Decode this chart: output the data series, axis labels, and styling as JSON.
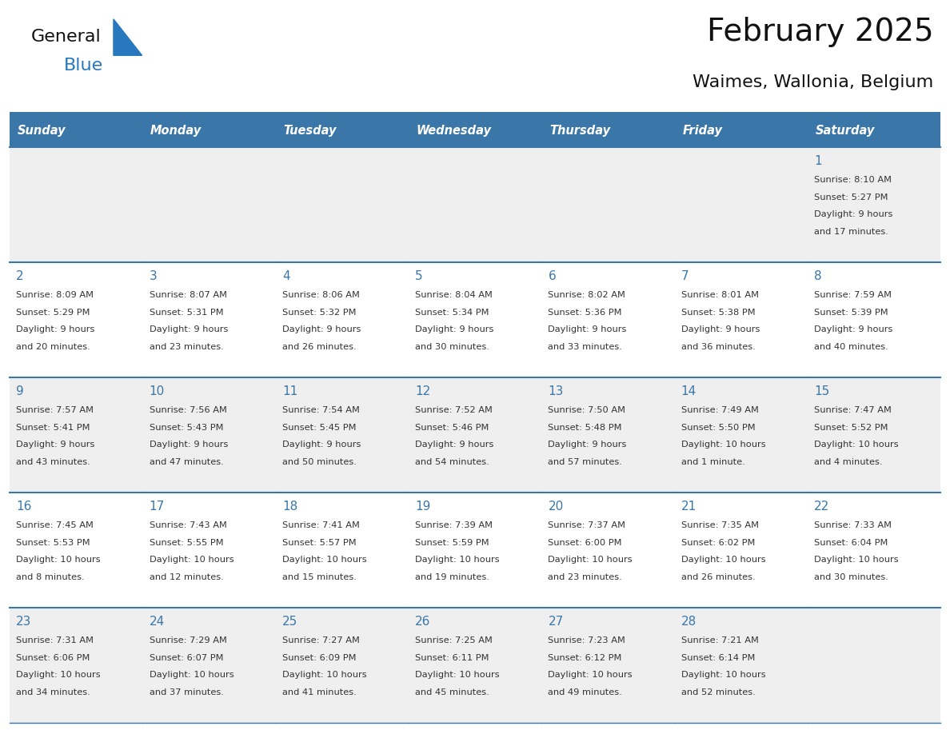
{
  "title": "February 2025",
  "subtitle": "Waimes, Wallonia, Belgium",
  "days_of_week": [
    "Sunday",
    "Monday",
    "Tuesday",
    "Wednesday",
    "Thursday",
    "Friday",
    "Saturday"
  ],
  "header_bg": "#3A76A8",
  "header_text": "#FFFFFF",
  "cell_bg_light": "#EFEFEF",
  "cell_bg_white": "#FFFFFF",
  "border_color": "#3A76A8",
  "day_num_color": "#3A76A8",
  "info_color": "#333333",
  "title_color": "#111111",
  "subtitle_color": "#111111",
  "logo_general_color": "#111111",
  "logo_blue_color": "#2878BE",
  "calendar_data": [
    [
      null,
      null,
      null,
      null,
      null,
      null,
      {
        "day": 1,
        "sunrise": "8:10 AM",
        "sunset": "5:27 PM",
        "daylight": "9 hours",
        "daylight2": "and 17 minutes."
      }
    ],
    [
      {
        "day": 2,
        "sunrise": "8:09 AM",
        "sunset": "5:29 PM",
        "daylight": "9 hours",
        "daylight2": "and 20 minutes."
      },
      {
        "day": 3,
        "sunrise": "8:07 AM",
        "sunset": "5:31 PM",
        "daylight": "9 hours",
        "daylight2": "and 23 minutes."
      },
      {
        "day": 4,
        "sunrise": "8:06 AM",
        "sunset": "5:32 PM",
        "daylight": "9 hours",
        "daylight2": "and 26 minutes."
      },
      {
        "day": 5,
        "sunrise": "8:04 AM",
        "sunset": "5:34 PM",
        "daylight": "9 hours",
        "daylight2": "and 30 minutes."
      },
      {
        "day": 6,
        "sunrise": "8:02 AM",
        "sunset": "5:36 PM",
        "daylight": "9 hours",
        "daylight2": "and 33 minutes."
      },
      {
        "day": 7,
        "sunrise": "8:01 AM",
        "sunset": "5:38 PM",
        "daylight": "9 hours",
        "daylight2": "and 36 minutes."
      },
      {
        "day": 8,
        "sunrise": "7:59 AM",
        "sunset": "5:39 PM",
        "daylight": "9 hours",
        "daylight2": "and 40 minutes."
      }
    ],
    [
      {
        "day": 9,
        "sunrise": "7:57 AM",
        "sunset": "5:41 PM",
        "daylight": "9 hours",
        "daylight2": "and 43 minutes."
      },
      {
        "day": 10,
        "sunrise": "7:56 AM",
        "sunset": "5:43 PM",
        "daylight": "9 hours",
        "daylight2": "and 47 minutes."
      },
      {
        "day": 11,
        "sunrise": "7:54 AM",
        "sunset": "5:45 PM",
        "daylight": "9 hours",
        "daylight2": "and 50 minutes."
      },
      {
        "day": 12,
        "sunrise": "7:52 AM",
        "sunset": "5:46 PM",
        "daylight": "9 hours",
        "daylight2": "and 54 minutes."
      },
      {
        "day": 13,
        "sunrise": "7:50 AM",
        "sunset": "5:48 PM",
        "daylight": "9 hours",
        "daylight2": "and 57 minutes."
      },
      {
        "day": 14,
        "sunrise": "7:49 AM",
        "sunset": "5:50 PM",
        "daylight": "10 hours",
        "daylight2": "and 1 minute."
      },
      {
        "day": 15,
        "sunrise": "7:47 AM",
        "sunset": "5:52 PM",
        "daylight": "10 hours",
        "daylight2": "and 4 minutes."
      }
    ],
    [
      {
        "day": 16,
        "sunrise": "7:45 AM",
        "sunset": "5:53 PM",
        "daylight": "10 hours",
        "daylight2": "and 8 minutes."
      },
      {
        "day": 17,
        "sunrise": "7:43 AM",
        "sunset": "5:55 PM",
        "daylight": "10 hours",
        "daylight2": "and 12 minutes."
      },
      {
        "day": 18,
        "sunrise": "7:41 AM",
        "sunset": "5:57 PM",
        "daylight": "10 hours",
        "daylight2": "and 15 minutes."
      },
      {
        "day": 19,
        "sunrise": "7:39 AM",
        "sunset": "5:59 PM",
        "daylight": "10 hours",
        "daylight2": "and 19 minutes."
      },
      {
        "day": 20,
        "sunrise": "7:37 AM",
        "sunset": "6:00 PM",
        "daylight": "10 hours",
        "daylight2": "and 23 minutes."
      },
      {
        "day": 21,
        "sunrise": "7:35 AM",
        "sunset": "6:02 PM",
        "daylight": "10 hours",
        "daylight2": "and 26 minutes."
      },
      {
        "day": 22,
        "sunrise": "7:33 AM",
        "sunset": "6:04 PM",
        "daylight": "10 hours",
        "daylight2": "and 30 minutes."
      }
    ],
    [
      {
        "day": 23,
        "sunrise": "7:31 AM",
        "sunset": "6:06 PM",
        "daylight": "10 hours",
        "daylight2": "and 34 minutes."
      },
      {
        "day": 24,
        "sunrise": "7:29 AM",
        "sunset": "6:07 PM",
        "daylight": "10 hours",
        "daylight2": "and 37 minutes."
      },
      {
        "day": 25,
        "sunrise": "7:27 AM",
        "sunset": "6:09 PM",
        "daylight": "10 hours",
        "daylight2": "and 41 minutes."
      },
      {
        "day": 26,
        "sunrise": "7:25 AM",
        "sunset": "6:11 PM",
        "daylight": "10 hours",
        "daylight2": "and 45 minutes."
      },
      {
        "day": 27,
        "sunrise": "7:23 AM",
        "sunset": "6:12 PM",
        "daylight": "10 hours",
        "daylight2": "and 49 minutes."
      },
      {
        "day": 28,
        "sunrise": "7:21 AM",
        "sunset": "6:14 PM",
        "daylight": "10 hours",
        "daylight2": "and 52 minutes."
      },
      null
    ]
  ],
  "fig_width": 11.88,
  "fig_height": 9.18
}
